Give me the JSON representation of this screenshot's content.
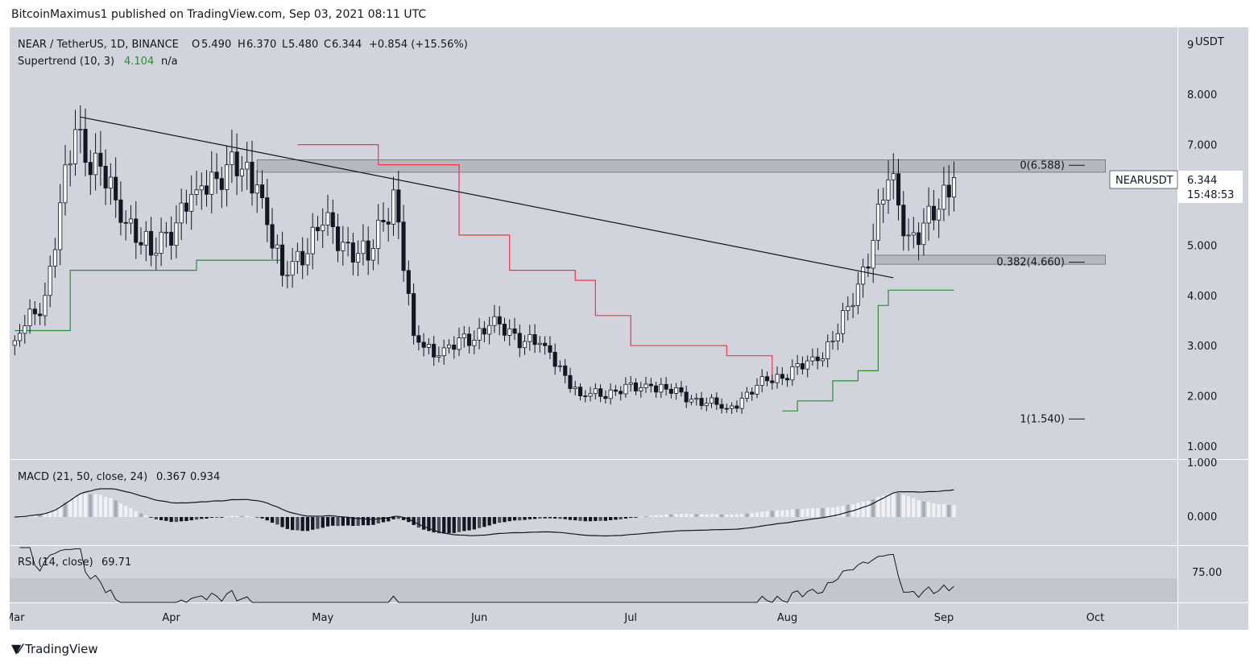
{
  "header": {
    "published_text": "BitcoinMaximus1 published on TradingView.com, Sep 03, 2021 08:11 UTC"
  },
  "footer": {
    "brand": "TradingView",
    "logo_icon": "tradingview-logo-icon"
  },
  "colors": {
    "background": "#d1d4dc",
    "rsi_band": "#c3c6cf",
    "up_candle": "#ffffff",
    "down_candle": "#131722",
    "supertrend_up": "#2e8b3a",
    "supertrend_down": "#f23645",
    "trendline": "#131722",
    "zone_fill": "#b2b5be"
  },
  "chart_data": [
    {
      "type": "candlestick",
      "title": "NEAR / TetherUS, 1D, BINANCE",
      "ohlc_legend": {
        "o_label": "O",
        "o": "5.490",
        "h_label": "H",
        "h": "6.370",
        "l_label": "L",
        "l": "5.480",
        "c_label": "C",
        "c": "6.344",
        "change": "+0.854 (+15.56%)"
      },
      "indicator": {
        "name": "Supertrend (10, 3)",
        "value": "4.104",
        "value2": "n/a"
      },
      "currency_label": "USDT",
      "y_ticks": [
        "9",
        "8.000",
        "7.000",
        "6.000",
        "5.000",
        "4.000",
        "3.000",
        "2.000",
        "1.000"
      ],
      "y_tick_values": [
        9,
        8,
        7,
        6,
        5,
        4,
        3,
        2,
        1
      ],
      "x_ticks": [
        "Mar",
        "Apr",
        "May",
        "Jun",
        "Jul",
        "Aug",
        "Sep",
        "Oct"
      ],
      "last_price_label": {
        "symbol": "NEARUSDT",
        "price": "6.344",
        "countdown": "15:48:53"
      },
      "fib_levels": [
        {
          "label": "0(6.588)",
          "value": 6.588
        },
        {
          "label": "0.382(4.660)",
          "value": 4.66
        },
        {
          "label": "1(1.540)",
          "value": 1.54
        }
      ],
      "resistance_zone": {
        "low": 6.45,
        "high": 6.7
      },
      "support_zone": {
        "low": 4.62,
        "high": 4.8
      },
      "trendline": {
        "from": {
          "date": "2021-03-14",
          "value": 7.55
        },
        "to": {
          "date": "2021-08-22",
          "value": 4.35
        }
      },
      "key_prices": [
        {
          "date": "2021-03-01",
          "close": 3.1
        },
        {
          "date": "2021-03-07",
          "close": 4.0
        },
        {
          "date": "2021-03-13",
          "close": 7.3
        },
        {
          "date": "2021-03-21",
          "close": 5.9
        },
        {
          "date": "2021-03-28",
          "close": 4.8
        },
        {
          "date": "2021-04-06",
          "close": 6.1
        },
        {
          "date": "2021-04-12",
          "close": 6.6
        },
        {
          "date": "2021-04-18",
          "close": 6.2
        },
        {
          "date": "2021-04-23",
          "close": 4.4
        },
        {
          "date": "2021-05-01",
          "close": 5.4
        },
        {
          "date": "2021-05-10",
          "close": 4.7
        },
        {
          "date": "2021-05-15",
          "close": 6.1
        },
        {
          "date": "2021-05-19",
          "close": 3.2
        },
        {
          "date": "2021-05-24",
          "close": 2.8
        },
        {
          "date": "2021-06-03",
          "close": 3.4
        },
        {
          "date": "2021-06-14",
          "close": 3.0
        },
        {
          "date": "2021-06-21",
          "close": 2.0
        },
        {
          "date": "2021-07-05",
          "close": 2.2
        },
        {
          "date": "2021-07-20",
          "close": 1.75
        },
        {
          "date": "2021-07-28",
          "close": 2.3
        },
        {
          "date": "2021-08-07",
          "close": 2.7
        },
        {
          "date": "2021-08-14",
          "close": 3.8
        },
        {
          "date": "2021-08-21",
          "close": 6.3
        },
        {
          "date": "2021-08-25",
          "close": 5.2
        },
        {
          "date": "2021-08-30",
          "close": 5.5
        },
        {
          "date": "2021-09-03",
          "close": 6.344
        }
      ],
      "supertrend_segments": [
        {
          "direction": "up",
          "points": [
            [
              "2021-03-01",
              3.3
            ],
            [
              "2021-03-10",
              3.3
            ],
            [
              "2021-03-12",
              4.5
            ],
            [
              "2021-04-04",
              4.5
            ],
            [
              "2021-04-06",
              4.7
            ],
            [
              "2021-04-23",
              4.7
            ]
          ]
        },
        {
          "direction": "down",
          "points": [
            [
              "2021-04-26",
              7.0
            ],
            [
              "2021-05-12",
              6.6
            ],
            [
              "2021-05-20",
              6.6
            ],
            [
              "2021-05-28",
              5.2
            ],
            [
              "2021-06-03",
              5.2
            ],
            [
              "2021-06-07",
              4.5
            ],
            [
              "2021-06-20",
              4.3
            ],
            [
              "2021-06-24",
              3.6
            ],
            [
              "2021-07-01",
              3.0
            ],
            [
              "2021-07-13",
              3.0
            ],
            [
              "2021-07-20",
              2.8
            ],
            [
              "2021-07-29",
              2.3
            ]
          ]
        },
        {
          "direction": "up",
          "points": [
            [
              "2021-07-31",
              1.7
            ],
            [
              "2021-08-03",
              1.9
            ],
            [
              "2021-08-06",
              1.9
            ],
            [
              "2021-08-10",
              2.3
            ],
            [
              "2021-08-15",
              2.5
            ],
            [
              "2021-08-19",
              3.8
            ],
            [
              "2021-08-21",
              4.104
            ],
            [
              "2021-09-03",
              4.104
            ]
          ]
        }
      ],
      "grid": false
    },
    {
      "type": "macd",
      "title": "MACD (21, 50, close, 24)",
      "values_text": [
        "0.367",
        "0.934"
      ],
      "y_ticks": [
        "1.000",
        "0.000"
      ]
    },
    {
      "type": "rsi",
      "title": "RSI (14, close)",
      "value_text": "69.71",
      "y_ticks": [
        "75.00"
      ]
    }
  ]
}
